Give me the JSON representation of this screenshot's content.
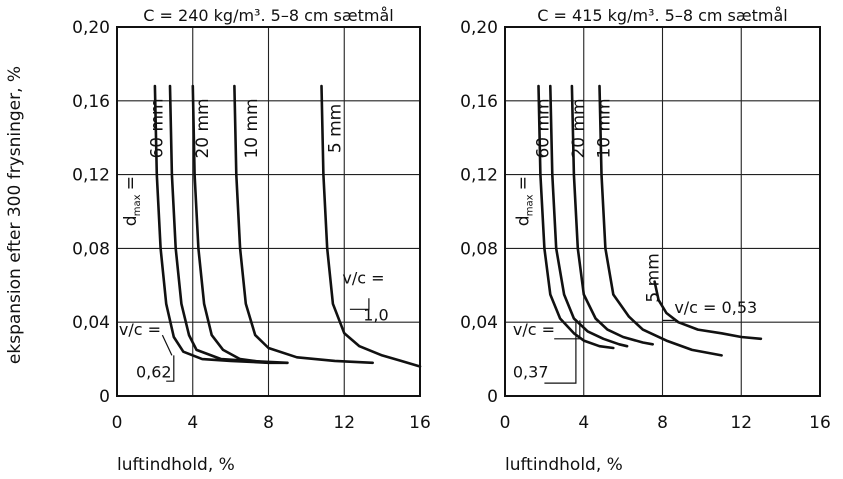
{
  "shared": {
    "ylabel": "ekspansion efter 300 frysninger, %",
    "xlabel": "luftindhold, %"
  },
  "chart_data": [
    {
      "type": "line",
      "title": "C = 240 kg/m³. 5–8 cm sætmål",
      "xlabel": "luftindhold, %",
      "ylabel": "ekspansion efter 300 frysninger, %",
      "xlim": [
        0,
        16
      ],
      "ylim": [
        0,
        0.2
      ],
      "x_ticks": [
        "0",
        "4",
        "8",
        "12",
        "16"
      ],
      "y_ticks": [
        "0",
        "0,04",
        "0,08",
        "0,12",
        "0,16",
        "0,20"
      ],
      "grid": true,
      "series": [
        {
          "name": "dmax = 60 mm",
          "x": [
            2.0,
            2.1,
            2.3,
            2.6,
            3.0,
            3.5,
            4.5,
            6.0,
            8.0
          ],
          "y": [
            0.168,
            0.12,
            0.08,
            0.05,
            0.032,
            0.024,
            0.02,
            0.019,
            0.018
          ]
        },
        {
          "name": "",
          "x": [
            2.8,
            2.9,
            3.1,
            3.4,
            3.8,
            4.2,
            5.5,
            7.0,
            9.0
          ],
          "y": [
            0.168,
            0.12,
            0.08,
            0.05,
            0.033,
            0.025,
            0.02,
            0.019,
            0.018
          ]
        },
        {
          "name": "20 mm",
          "x": [
            4.0,
            4.1,
            4.3,
            4.6,
            5.0,
            5.6,
            6.5,
            8.0,
            9.0
          ],
          "y": [
            0.168,
            0.12,
            0.08,
            0.05,
            0.033,
            0.025,
            0.02,
            0.018,
            0.018
          ]
        },
        {
          "name": "10 mm",
          "x": [
            6.2,
            6.3,
            6.5,
            6.8,
            7.3,
            8.0,
            9.5,
            11.5,
            13.5
          ],
          "y": [
            0.168,
            0.12,
            0.08,
            0.05,
            0.033,
            0.026,
            0.021,
            0.019,
            0.018
          ]
        },
        {
          "name": "5 mm",
          "x": [
            10.8,
            10.9,
            11.1,
            11.4,
            12.0,
            12.8,
            14.0,
            15.0,
            16.0
          ],
          "y": [
            0.168,
            0.12,
            0.08,
            0.05,
            0.034,
            0.027,
            0.022,
            0.019,
            0.016
          ]
        }
      ],
      "annotations": [
        "v/c =",
        "0,62",
        "v/c =",
        "1,0"
      ]
    },
    {
      "type": "line",
      "title": "C = 415 kg/m³. 5–8 cm sætmål",
      "xlabel": "luftindhold, %",
      "xlim": [
        0,
        16
      ],
      "ylim": [
        0,
        0.2
      ],
      "x_ticks": [
        "0",
        "4",
        "8",
        "12",
        "16"
      ],
      "y_ticks": [
        "0",
        "0,04",
        "0,08",
        "0,12",
        "0,16",
        "0,20"
      ],
      "grid": true,
      "series": [
        {
          "name": "dmax = 60 mm",
          "x": [
            1.7,
            1.8,
            2.0,
            2.3,
            2.8,
            3.5,
            4.0,
            4.8,
            5.5
          ],
          "y": [
            0.168,
            0.12,
            0.08,
            0.055,
            0.042,
            0.034,
            0.03,
            0.027,
            0.026
          ]
        },
        {
          "name": "",
          "x": [
            2.3,
            2.4,
            2.6,
            3.0,
            3.5,
            4.2,
            5.0,
            5.8,
            6.2
          ],
          "y": [
            0.168,
            0.12,
            0.08,
            0.055,
            0.042,
            0.035,
            0.031,
            0.028,
            0.027
          ]
        },
        {
          "name": "20 mm",
          "x": [
            3.4,
            3.5,
            3.7,
            4.0,
            4.6,
            5.2,
            6.0,
            7.0,
            7.5
          ],
          "y": [
            0.168,
            0.12,
            0.08,
            0.055,
            0.042,
            0.036,
            0.032,
            0.029,
            0.028
          ]
        },
        {
          "name": "10 mm",
          "x": [
            4.8,
            4.9,
            5.1,
            5.5,
            6.3,
            7.0,
            8.2,
            9.5,
            11.0
          ],
          "y": [
            0.168,
            0.12,
            0.08,
            0.055,
            0.043,
            0.036,
            0.03,
            0.025,
            0.022
          ]
        },
        {
          "name": "5 mm",
          "x": [
            7.6,
            7.8,
            8.2,
            8.8,
            9.8,
            11.0,
            12.0,
            13.0
          ],
          "y": [
            0.062,
            0.052,
            0.045,
            0.04,
            0.036,
            0.034,
            0.032,
            0.031
          ]
        }
      ],
      "annotations": [
        "v/c =",
        "0,37",
        "v/c = 0,53"
      ]
    }
  ],
  "panel_labels": [
    {
      "series_labels": [
        "60 mm",
        "20 mm",
        "10 mm",
        "5 mm"
      ],
      "dmax_main": "d",
      "dmax_sub": "max",
      "dmax_eq": "="
    },
    {
      "series_labels": [
        "60 mm",
        "20 mm",
        "10 mm",
        "5 mm"
      ],
      "dmax_main": "d",
      "dmax_sub": "max",
      "dmax_eq": "="
    }
  ]
}
